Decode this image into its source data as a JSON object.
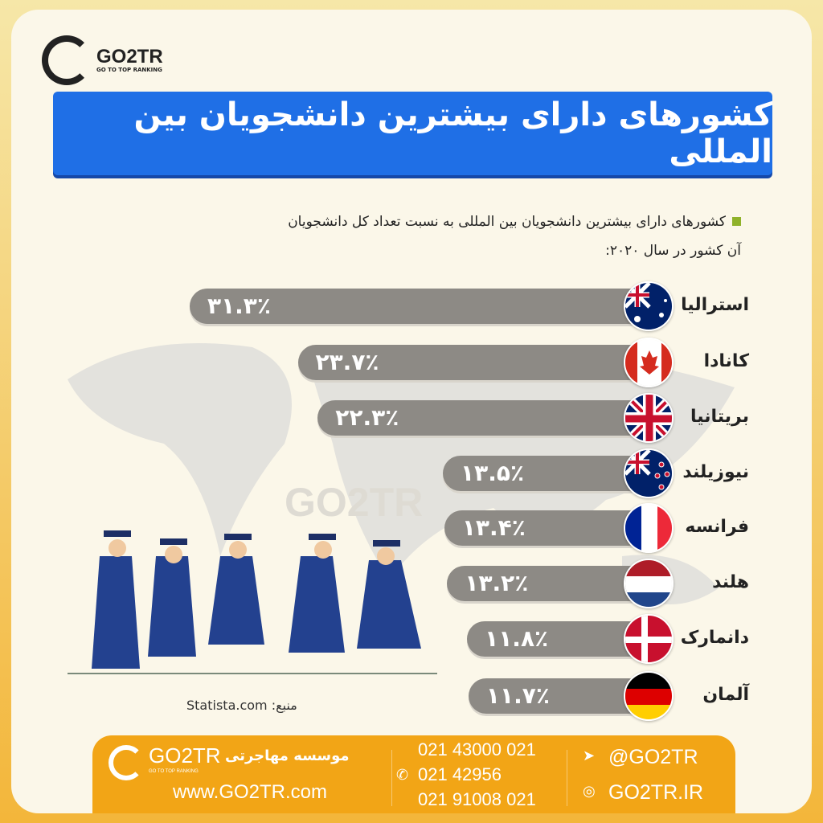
{
  "brand": {
    "name": "GO2TR",
    "tagline": "GO TO TOP RANKING"
  },
  "title": "کشورهای دارای بیشترین دانشجویان بین المللی",
  "subtitle_line1": "کشورهای دارای بیشترین دانشجویان بین المللی به نسبت تعداد کل دانشجویان",
  "subtitle_line2": "آن کشور در سال ۲۰۲۰:",
  "watermark": "GO2TR",
  "source": "منبع: Statista.com",
  "colors": {
    "title_bg": "#1f6fe6",
    "bar": "#8d8a85",
    "footer": "#f2a516",
    "bullet": "#8fb22a"
  },
  "chart_data": {
    "type": "bar",
    "orientation": "horizontal",
    "unit": "%",
    "categories": [
      "استرالیا",
      "کانادا",
      "بریتانیا",
      "نیوزیلند",
      "فرانسه",
      "هلند",
      "دانمارک",
      "آلمان"
    ],
    "values": [
      31.3,
      23.7,
      22.3,
      13.5,
      13.4,
      13.2,
      11.8,
      11.7
    ],
    "labels": [
      "۳۱.۳٪",
      "۲۳.۷٪",
      "۲۲.۳٪",
      "۱۳.۵٪",
      "۱۳.۴٪",
      "۱۳.۲٪",
      "۱۱.۸٪",
      "۱۱.۷٪"
    ],
    "flags": [
      "australia-flag",
      "canada-flag",
      "uk-flag",
      "new-zealand-flag",
      "france-flag",
      "netherlands-flag",
      "denmark-flag",
      "germany-flag"
    ]
  },
  "footer": {
    "institute": "موسسه مهاجرتی",
    "website": "www.GO2TR.com",
    "phones": [
      "021 43000 021",
      "021 42956",
      "021 91008 021"
    ],
    "telegram": "@GO2TR",
    "instagram": "GO2TR.IR"
  }
}
